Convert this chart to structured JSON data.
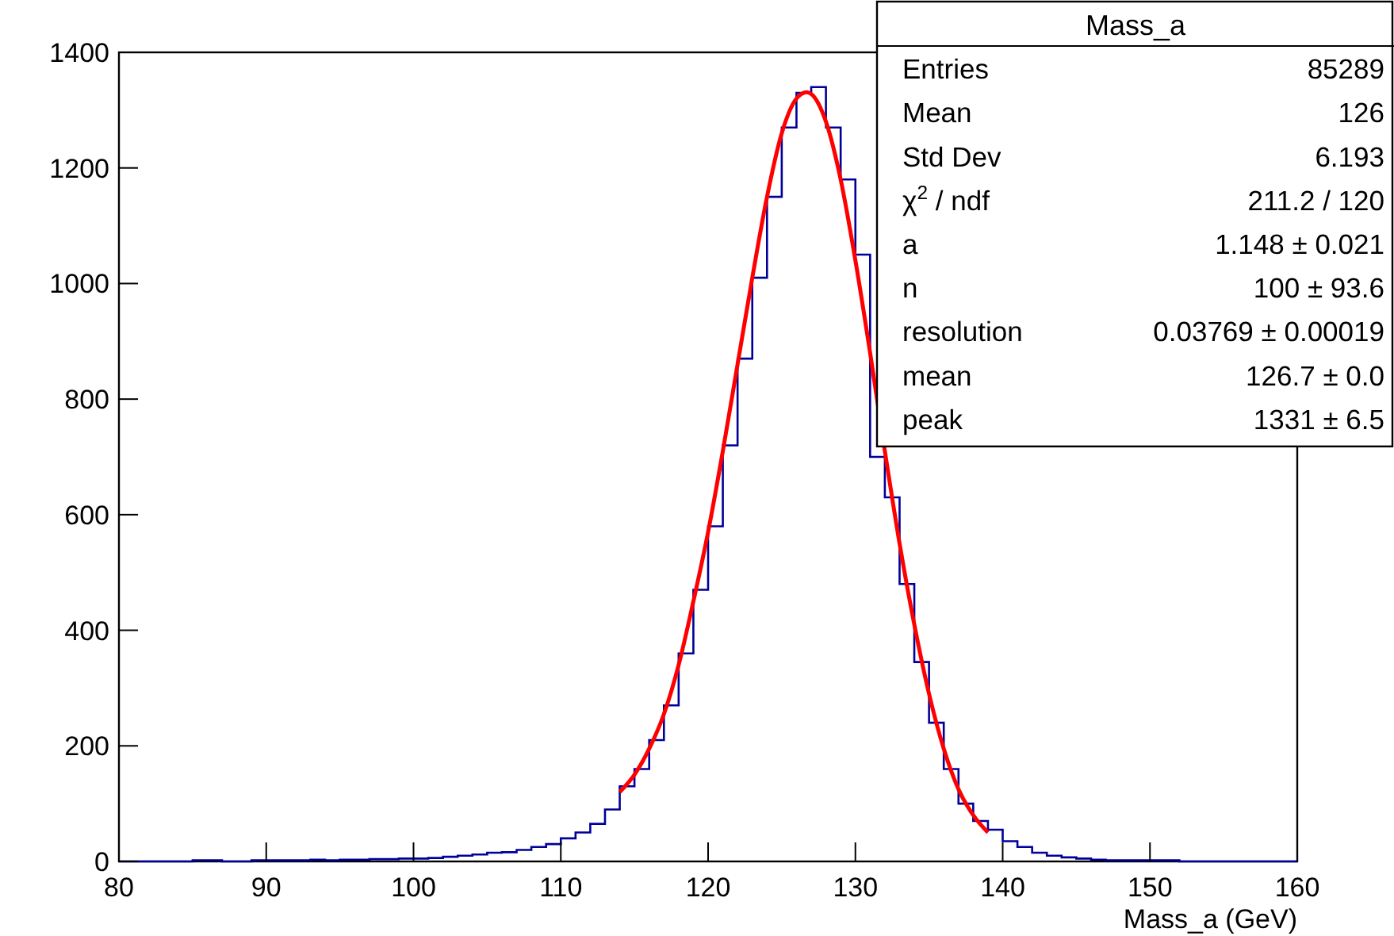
{
  "chart_data": {
    "type": "histogram",
    "xlabel": "Mass_a (GeV)",
    "color": "#000099",
    "bins": [
      80,
      81,
      82,
      83,
      84,
      85,
      86,
      87,
      88,
      89,
      90,
      91,
      92,
      93,
      94,
      95,
      96,
      97,
      98,
      99,
      100,
      101,
      102,
      103,
      104,
      105,
      106,
      107,
      108,
      109,
      110,
      111,
      112,
      113,
      114,
      115,
      116,
      117,
      118,
      119,
      120,
      121,
      122,
      123,
      124,
      125,
      126,
      127,
      128,
      129,
      130,
      131,
      132,
      133,
      134,
      135,
      136,
      137,
      138,
      139,
      140,
      141,
      142,
      143,
      144,
      145,
      146,
      147,
      148,
      149,
      150,
      151,
      152,
      153,
      154,
      155,
      156,
      157,
      158,
      159,
      160
    ],
    "values": [
      0,
      0,
      0,
      0,
      0,
      2,
      2,
      0,
      0,
      2,
      2,
      2,
      2,
      3,
      2,
      3,
      3,
      4,
      4,
      5,
      5,
      6,
      8,
      10,
      12,
      15,
      16,
      20,
      25,
      30,
      40,
      50,
      65,
      90,
      130,
      160,
      210,
      270,
      360,
      470,
      580,
      720,
      870,
      1010,
      1150,
      1270,
      1330,
      1340,
      1270,
      1180,
      1050,
      700,
      630,
      480,
      345,
      240,
      160,
      100,
      70,
      55,
      35,
      25,
      15,
      10,
      7,
      5,
      3,
      2,
      2,
      2,
      2,
      2,
      0,
      0,
      0,
      0,
      0,
      0,
      0,
      0
    ],
    "series": [
      {
        "type": "line",
        "color": "#ff0000",
        "x": [
          114,
          115,
          116,
          117,
          118,
          119,
          120,
          121,
          122,
          123,
          124,
          125,
          126,
          126.7,
          127,
          128,
          129,
          130,
          131,
          132,
          133,
          134,
          135,
          136,
          137,
          138,
          139
        ],
        "values": [
          120,
          150,
          195,
          255,
          340,
          450,
          570,
          710,
          860,
          1010,
          1150,
          1260,
          1320,
          1331,
          1328,
          1280,
          1180,
          1040,
          880,
          710,
          550,
          410,
          290,
          195,
          125,
          80,
          50
        ]
      }
    ],
    "xlim": [
      80,
      160
    ],
    "xticks": [
      80,
      90,
      100,
      110,
      120,
      130,
      140,
      150,
      160
    ],
    "ylim": [
      0,
      1400
    ],
    "yticks": [
      0,
      200,
      400,
      600,
      800,
      1000,
      1200,
      1400
    ],
    "grid": false,
    "annotations": [
      "Mass_a",
      "Entries",
      "85289",
      "Mean",
      "126",
      "Std Dev",
      "6.193",
      "χ$^{2}$ / ndf",
      "211.2 / 120",
      "a",
      "1.148 ± 0.021",
      "n",
      "100 ± 93.6",
      "resolution",
      "0.03769 ± 0.00019",
      "mean",
      "126.7 ± 0.0",
      "peak",
      "1331 ± 6.5"
    ]
  }
}
